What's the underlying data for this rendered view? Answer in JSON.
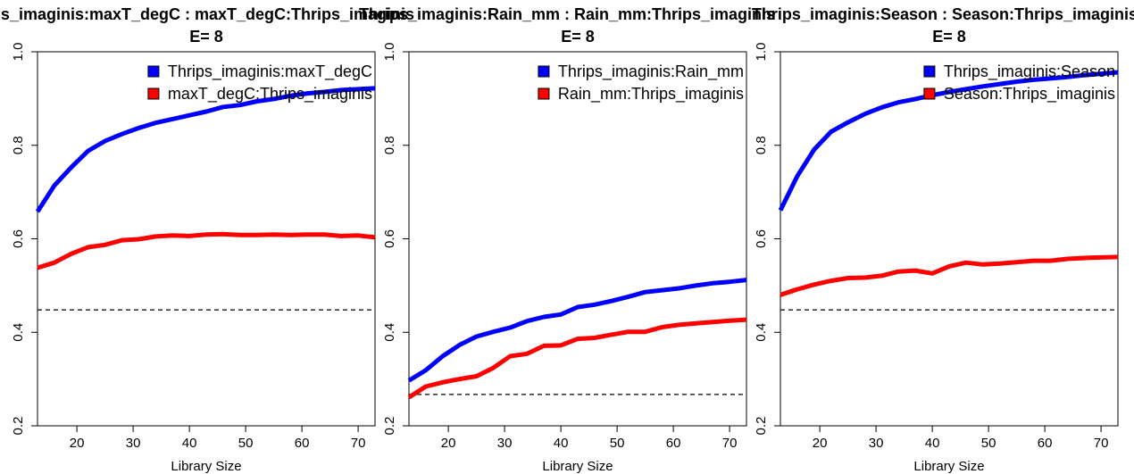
{
  "chart_data": [
    {
      "type": "line",
      "title": "Thrips_imaginis:maxT_degC  :  maxT_degC:Thrips_imaginis",
      "subtitle": "E= 8",
      "xlabel": "Library Size",
      "ylabel": "",
      "xlim": [
        13,
        73
      ],
      "ylim": [
        0.2,
        1.0
      ],
      "xticks": [
        "20",
        "30",
        "40",
        "50",
        "60",
        "70"
      ],
      "yticks": [
        "0.2",
        "0.4",
        "0.6",
        "0.8",
        "1.0"
      ],
      "legend_position": "top-right",
      "threshold": 0.448,
      "series": [
        {
          "name": "Thrips_imaginis:maxT_degC",
          "color": "#0000ff",
          "x": [
            13,
            16,
            19,
            22,
            25,
            28,
            31,
            34,
            37,
            40,
            43,
            46,
            49,
            52,
            55,
            58,
            61,
            64,
            67,
            70,
            73
          ],
          "y": [
            0.658,
            0.714,
            0.753,
            0.788,
            0.809,
            0.824,
            0.837,
            0.848,
            0.856,
            0.864,
            0.872,
            0.882,
            0.886,
            0.894,
            0.899,
            0.906,
            0.911,
            0.914,
            0.918,
            0.92,
            0.922
          ]
        },
        {
          "name": "maxT_degC:Thrips_imaginis",
          "color": "#ff0000",
          "x": [
            13,
            16,
            19,
            22,
            25,
            28,
            31,
            34,
            37,
            40,
            43,
            46,
            49,
            52,
            55,
            58,
            61,
            64,
            67,
            70,
            73
          ],
          "y": [
            0.538,
            0.549,
            0.568,
            0.582,
            0.587,
            0.597,
            0.599,
            0.605,
            0.607,
            0.606,
            0.609,
            0.61,
            0.608,
            0.608,
            0.609,
            0.608,
            0.609,
            0.609,
            0.606,
            0.607,
            0.603
          ]
        }
      ]
    },
    {
      "type": "line",
      "title": "Thrips_imaginis:Rain_mm  :  Rain_mm:Thrips_imaginis",
      "subtitle": "E= 8",
      "xlabel": "Library Size",
      "ylabel": "",
      "xlim": [
        13,
        73
      ],
      "ylim": [
        0.2,
        1.0
      ],
      "xticks": [
        "20",
        "30",
        "40",
        "50",
        "60",
        "70"
      ],
      "yticks": [
        "0.2",
        "0.4",
        "0.6",
        "0.8",
        "1.0"
      ],
      "legend_position": "top-right",
      "threshold": 0.267,
      "series": [
        {
          "name": "Thrips_imaginis:Rain_mm",
          "color": "#0000ff",
          "x": [
            13,
            16,
            19,
            22,
            25,
            28,
            31,
            34,
            37,
            40,
            43,
            46,
            49,
            52,
            55,
            58,
            61,
            64,
            67,
            70,
            73
          ],
          "y": [
            0.297,
            0.319,
            0.349,
            0.373,
            0.391,
            0.401,
            0.41,
            0.424,
            0.433,
            0.438,
            0.454,
            0.459,
            0.467,
            0.476,
            0.486,
            0.49,
            0.494,
            0.5,
            0.505,
            0.508,
            0.512
          ]
        },
        {
          "name": "Rain_mm:Thrips_imaginis",
          "color": "#ff0000",
          "x": [
            13,
            16,
            19,
            22,
            25,
            28,
            31,
            34,
            37,
            40,
            43,
            46,
            49,
            52,
            55,
            58,
            61,
            64,
            67,
            70,
            73
          ],
          "y": [
            0.261,
            0.284,
            0.293,
            0.3,
            0.306,
            0.324,
            0.349,
            0.354,
            0.371,
            0.372,
            0.386,
            0.388,
            0.395,
            0.401,
            0.401,
            0.411,
            0.416,
            0.419,
            0.422,
            0.425,
            0.427
          ]
        }
      ]
    },
    {
      "type": "line",
      "title": "Thrips_imaginis:Season  :  Season:Thrips_imaginis",
      "subtitle": "E= 8",
      "xlabel": "Library Size",
      "ylabel": "",
      "xlim": [
        13,
        73
      ],
      "ylim": [
        0.2,
        1.0
      ],
      "xticks": [
        "20",
        "30",
        "40",
        "50",
        "60",
        "70"
      ],
      "yticks": [
        "0.2",
        "0.4",
        "0.6",
        "0.8",
        "1.0"
      ],
      "legend_position": "top-right",
      "threshold": 0.448,
      "series": [
        {
          "name": "Thrips_imaginis:Season",
          "color": "#0000ff",
          "x": [
            13,
            16,
            19,
            22,
            25,
            28,
            31,
            34,
            37,
            40,
            43,
            46,
            49,
            52,
            55,
            58,
            61,
            64,
            67,
            70,
            73
          ],
          "y": [
            0.661,
            0.734,
            0.791,
            0.829,
            0.849,
            0.867,
            0.881,
            0.892,
            0.899,
            0.907,
            0.914,
            0.92,
            0.926,
            0.931,
            0.936,
            0.94,
            0.943,
            0.946,
            0.95,
            0.953,
            0.956
          ]
        },
        {
          "name": "Season:Thrips_imaginis",
          "color": "#ff0000",
          "x": [
            13,
            16,
            19,
            22,
            25,
            28,
            31,
            34,
            37,
            40,
            43,
            46,
            49,
            52,
            55,
            58,
            61,
            64,
            67,
            70,
            73
          ],
          "y": [
            0.48,
            0.492,
            0.502,
            0.51,
            0.516,
            0.517,
            0.521,
            0.53,
            0.532,
            0.526,
            0.541,
            0.549,
            0.545,
            0.547,
            0.55,
            0.553,
            0.553,
            0.557,
            0.559,
            0.56,
            0.561
          ]
        }
      ]
    }
  ]
}
